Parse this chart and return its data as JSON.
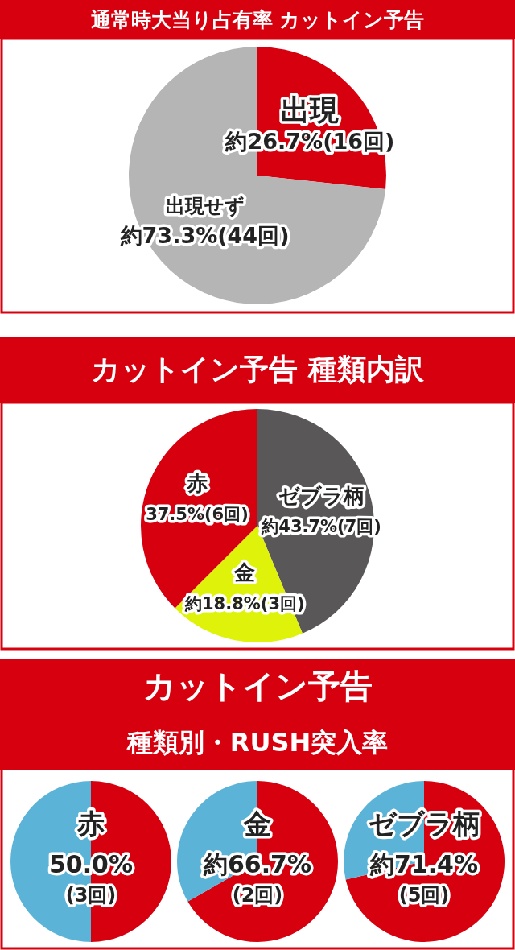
{
  "chart_data": [
    {
      "type": "pie",
      "title": "通常時大当り占有率 カットイン予告",
      "categories": [
        "出現",
        "出現せず"
      ],
      "values": [
        26.7,
        73.3
      ],
      "colors": [
        "#d7000f",
        "#b5b5b6"
      ],
      "value_labels": [
        "約26.7%(16回)",
        "約73.3%(44回)"
      ]
    },
    {
      "type": "pie",
      "title": "カットイン予告 種類内訳",
      "categories": [
        "ゼブラ柄",
        "金",
        "赤"
      ],
      "values": [
        43.7,
        18.8,
        37.5
      ],
      "colors": [
        "#595757",
        "#dff20a",
        "#d7000f"
      ],
      "value_labels": [
        "約43.7%(7回)",
        "約18.8%(3回)",
        "37.5%(6回)"
      ]
    },
    {
      "type": "other",
      "title": "カットイン予告",
      "subtitle": "種類別・RUSH突入率"
    },
    {
      "type": "pie",
      "title": "赤",
      "categories": [
        null,
        null
      ],
      "values": [
        50.0,
        50.0
      ],
      "colors": [
        "#d7000f",
        "#5bb4d8"
      ],
      "value_labels": [
        "50.0%\n(3回)",
        null
      ]
    },
    {
      "type": "pie",
      "title": "金",
      "categories": [
        null,
        null
      ],
      "values": [
        66.7,
        33.3
      ],
      "colors": [
        "#d7000f",
        "#5bb4d8"
      ],
      "value_labels": [
        "約66.7%\n(2回)",
        null
      ]
    },
    {
      "type": "pie",
      "title": "ゼブラ柄",
      "categories": [
        null,
        null
      ],
      "values": [
        71.4,
        28.6
      ],
      "colors": [
        "#d7000f",
        "#5bb4d8"
      ],
      "value_labels": [
        "約71.4%\n(5回)",
        null
      ]
    }
  ]
}
